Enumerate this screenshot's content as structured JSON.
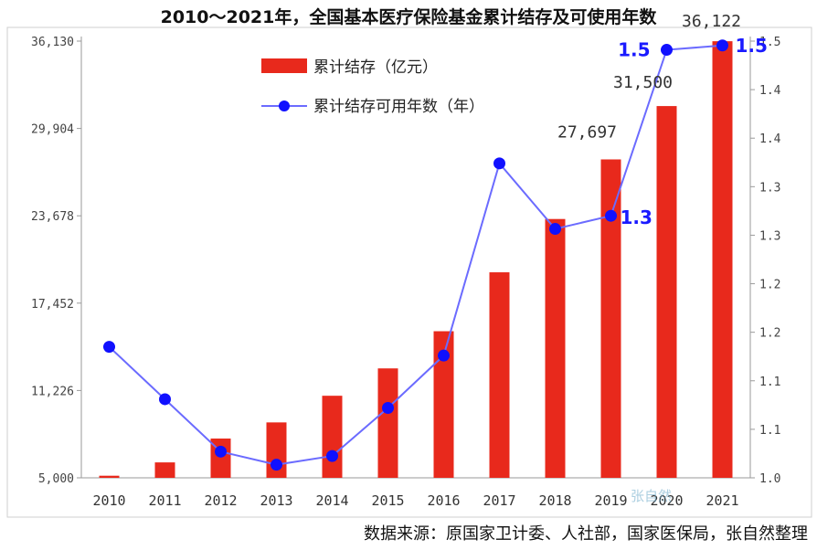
{
  "chart_data": {
    "type": "bar",
    "title": "2010～2021年，全国基本医疗保险基金累计结存及可使用年数",
    "source": "数据来源：原国家卫计委、人社部，国家医保局，张自然整理",
    "categories": [
      "2010",
      "2011",
      "2012",
      "2013",
      "2014",
      "2015",
      "2016",
      "2017",
      "2018",
      "2019",
      "2020",
      "2021"
    ],
    "series": [
      {
        "name": "累计结存（亿元）",
        "type": "bar",
        "axis": "left",
        "color": "#e8291c",
        "values": [
          5150,
          6100,
          7800,
          8950,
          10850,
          12800,
          15450,
          19650,
          23450,
          27697,
          31500,
          36122
        ]
      },
      {
        "name": "累计结存可用年数（年）",
        "type": "line",
        "axis": "right",
        "color": "#6b6bff",
        "marker_color": "#1010ff",
        "values": [
          1.15,
          1.09,
          1.03,
          1.015,
          1.025,
          1.08,
          1.14,
          1.36,
          1.285,
          1.3,
          1.49,
          1.495
        ]
      }
    ],
    "bar_labels": [
      {
        "index": 9,
        "text": "27,697"
      },
      {
        "index": 10,
        "text": "31,500"
      },
      {
        "index": 11,
        "text": "36,122"
      }
    ],
    "line_labels": [
      {
        "index": 9,
        "text": "1.3"
      },
      {
        "index": 10,
        "text": "1.5"
      },
      {
        "index": 11,
        "text": "1.5"
      }
    ],
    "y_left": {
      "min": 5000,
      "max": 36130,
      "ticks": [
        "5,000",
        "11,226",
        "17,452",
        "23,678",
        "29,904",
        "36,130"
      ]
    },
    "y_right": {
      "min": 1.0,
      "max": 1.5,
      "ticks": [
        "1.0",
        "1.1",
        "1.1",
        "1.2",
        "1.2",
        "1.3",
        "1.3",
        "1.4",
        "1.4",
        "1.5"
      ]
    },
    "legend_position": "top-center",
    "grid": false,
    "watermark": "张自然"
  }
}
